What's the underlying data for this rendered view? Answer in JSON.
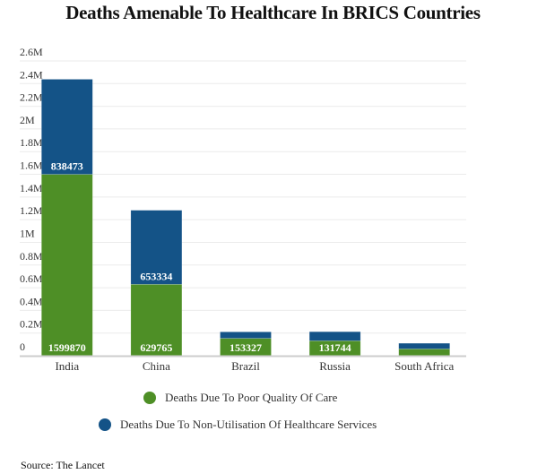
{
  "chart_data": {
    "type": "bar",
    "stacked": true,
    "title": "Deaths Amenable To Healthcare In BRICS Countries",
    "categories": [
      "India",
      "China",
      "Brazil",
      "Russia",
      "South Africa"
    ],
    "series": [
      {
        "name": "Deaths Due To Poor Quality Of Care",
        "color": "#4e8f26",
        "values": [
          1599870,
          629765,
          153327,
          131744,
          60000
        ],
        "labels": [
          "1599870",
          "629765",
          "153327",
          "131744",
          ""
        ]
      },
      {
        "name": "Deaths Due To Non-Utilisation Of Healthcare Services",
        "color": "#145387",
        "values": [
          838473,
          653334,
          57000,
          80000,
          50000
        ],
        "labels": [
          "838473",
          "653334",
          "",
          "",
          ""
        ]
      }
    ],
    "yticks": [
      0,
      200000,
      400000,
      600000,
      800000,
      1000000,
      1200000,
      1400000,
      1600000,
      1800000,
      2000000,
      2200000,
      2400000,
      2600000
    ],
    "ytick_labels": [
      "0",
      "0.2M",
      "0.4M",
      "0.6M",
      "0.8M",
      "1M",
      "1.2M",
      "1.4M",
      "1.6M",
      "1.8M",
      "2M",
      "2.2M",
      "2.4M",
      "2.6M"
    ],
    "ylim": [
      0,
      2600000
    ],
    "grid": true,
    "legend_placement": "bottom"
  },
  "source": "Source: The Lancet"
}
